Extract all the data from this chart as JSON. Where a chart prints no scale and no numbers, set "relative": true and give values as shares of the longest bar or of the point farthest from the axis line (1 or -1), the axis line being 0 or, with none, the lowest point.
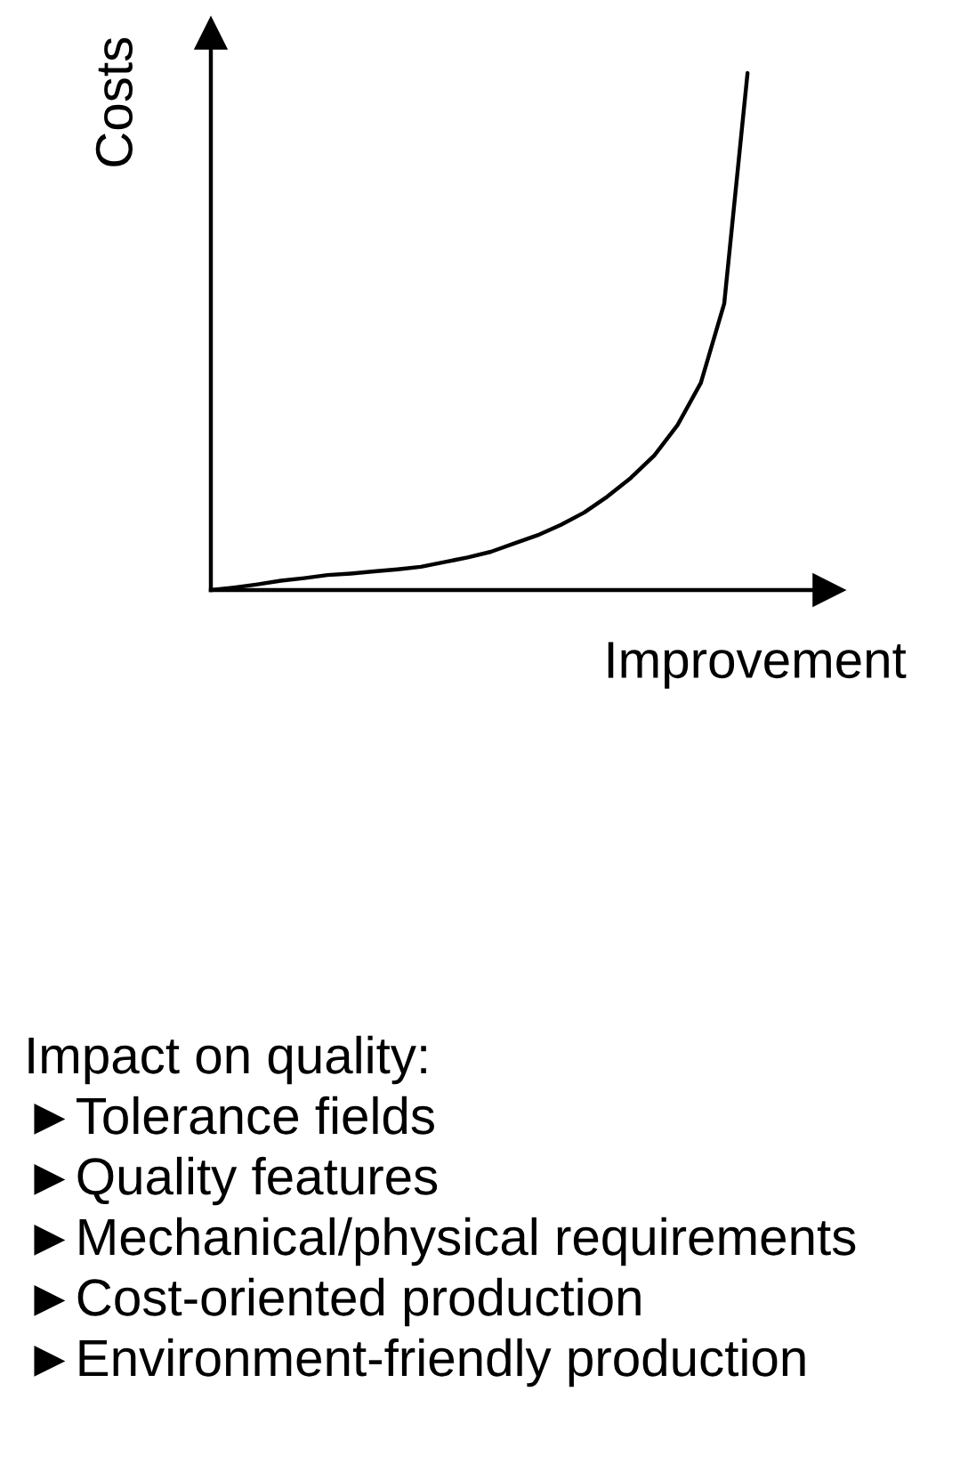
{
  "chart_data": {
    "type": "line",
    "relative": true,
    "xlabel": "Improvement",
    "ylabel": "Costs",
    "categories": [
      null,
      null,
      null,
      null,
      null,
      null,
      null,
      null,
      null,
      null,
      null,
      null,
      null,
      null,
      null,
      null,
      null,
      null,
      null,
      null,
      null,
      null,
      null,
      null,
      null,
      null,
      null
    ],
    "series": [
      {
        "color": "#000000",
        "values": [
          0,
          0.005,
          0.011,
          0.018,
          0.023,
          0.029,
          0.032,
          0.036,
          0.04,
          0.045,
          0.054,
          0.063,
          0.074,
          0.09,
          0.106,
          0.126,
          0.15,
          0.181,
          0.217,
          0.26,
          0.319,
          0.401,
          0.554,
          1,
          null,
          null,
          null
        ]
      }
    ],
    "annotations": [
      "Impact on quality:",
      "►Tolerance fields",
      "►Quality features",
      "►Mechanical/physical requirements",
      "►Cost-oriented production",
      "►Environment-friendly production"
    ],
    "grid": false,
    "legend": false,
    "marker": "none",
    "line_style": "solid"
  }
}
